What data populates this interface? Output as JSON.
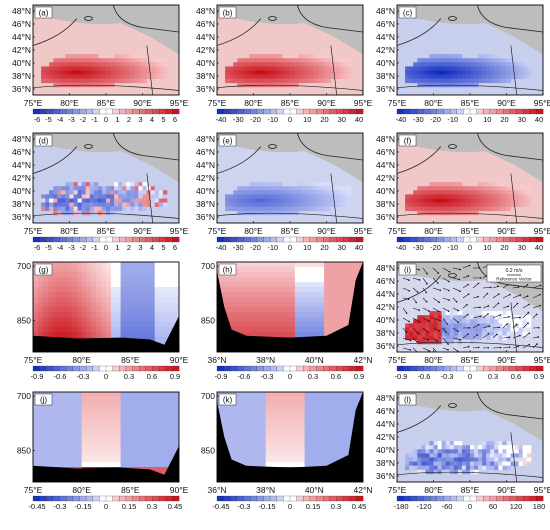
{
  "chart_data": [
    {
      "type": "heatmap",
      "panel": "(a)",
      "kind": "map",
      "xticks": [
        "75°E",
        "80°E",
        "85°E",
        "90°E",
        "95°E"
      ],
      "yticks": [
        "48°N",
        "46°N",
        "44°N",
        "42°N",
        "40°N",
        "38°N",
        "36°N"
      ],
      "field": "pos",
      "shared_colorbar": "cb_a"
    },
    {
      "type": "heatmap",
      "panel": "(b)",
      "kind": "map",
      "xticks": [
        "75°E",
        "80°E",
        "85°E",
        "90°E",
        "95°E"
      ],
      "yticks": [
        "48°N",
        "46°N",
        "44°N",
        "42°N",
        "40°N",
        "38°N",
        "36°N"
      ],
      "field": "pos",
      "shared_colorbar": "cb_b"
    },
    {
      "type": "heatmap",
      "panel": "(c)",
      "kind": "map",
      "xticks": [
        "75°E",
        "80°E",
        "85°E",
        "90°E",
        "95°E"
      ],
      "yticks": [
        "48°N",
        "46°N",
        "44°N",
        "42°N",
        "40°N",
        "38°N",
        "36°N"
      ],
      "field": "neg",
      "shared_colorbar": "cb_c"
    },
    {
      "type": "heatmap",
      "panel": "(d)",
      "kind": "map",
      "xticks": [
        "75°E",
        "80°E",
        "85°E",
        "90°E",
        "95°E"
      ],
      "yticks": [
        "48°N",
        "46°N",
        "44°N",
        "42°N",
        "40°N",
        "38°N",
        "36°N"
      ],
      "field": "mixneg",
      "shared_colorbar": "cb_d"
    },
    {
      "type": "heatmap",
      "panel": "(e)",
      "kind": "map",
      "xticks": [
        "75°E",
        "80°E",
        "85°E",
        "90°E",
        "95°E"
      ],
      "yticks": [
        "48°N",
        "46°N",
        "44°N",
        "42°N",
        "40°N",
        "38°N",
        "36°N"
      ],
      "field": "negweak",
      "shared_colorbar": "cb_e"
    },
    {
      "type": "heatmap",
      "panel": "(f)",
      "kind": "map",
      "xticks": [
        "75°E",
        "80°E",
        "85°E",
        "90°E",
        "95°E"
      ],
      "yticks": [
        "48°N",
        "46°N",
        "44°N",
        "42°N",
        "40°N",
        "38°N",
        "36°N"
      ],
      "field": "pos",
      "shared_colorbar": "cb_f"
    },
    {
      "type": "heatmap",
      "panel": "(g)",
      "kind": "section",
      "xticks": [
        "75°E",
        "80°E",
        "85°E",
        "90°E"
      ],
      "yticks": [
        "700",
        "850"
      ],
      "field": "sec_pos",
      "shared_colorbar": "cb_g"
    },
    {
      "type": "heatmap",
      "panel": "(h)",
      "kind": "section",
      "xticks": [
        "36°N",
        "38°N",
        "40°N",
        "42°N"
      ],
      "yticks": [
        "700",
        "850"
      ],
      "field": "sec_pos2",
      "shared_colorbar": "cb_h"
    },
    {
      "type": "heatmap",
      "panel": "(i)",
      "kind": "map",
      "xticks": [
        "75°E",
        "80°E",
        "85°E",
        "90°E",
        "95°E"
      ],
      "yticks": [
        "48°N",
        "46°N",
        "44°N",
        "42°N",
        "40°N",
        "38°N",
        "36°N"
      ],
      "field": "vec",
      "vector_key": {
        "label": "0.2 m/s",
        "title": "Reference Vector"
      },
      "shared_colorbar": "cb_i"
    },
    {
      "type": "heatmap",
      "panel": "(j)",
      "kind": "section",
      "xticks": [
        "75°E",
        "80°E",
        "85°E",
        "90°E"
      ],
      "yticks": [
        "700",
        "850"
      ],
      "field": "sec_neg",
      "shared_colorbar": "cb_j"
    },
    {
      "type": "heatmap",
      "panel": "(k)",
      "kind": "section",
      "xticks": [
        "36°N",
        "38°N",
        "40°N",
        "42°N"
      ],
      "yticks": [
        "700",
        "850"
      ],
      "field": "sec_neg",
      "shared_colorbar": "cb_k"
    },
    {
      "type": "heatmap",
      "panel": "(l)",
      "kind": "map",
      "xticks": [
        "75°E",
        "80°E",
        "85°E",
        "90°E",
        "95°E"
      ],
      "yticks": [
        "48°N",
        "46°N",
        "44°N",
        "42°N",
        "40°N",
        "38°N",
        "36°N"
      ],
      "field": "negnoisy",
      "shared_colorbar": "cb_l"
    }
  ],
  "colorbars": {
    "cb_a": {
      "labels": [
        "-6",
        "-5",
        "-4",
        "-3",
        "-2",
        "-1",
        "0",
        "1",
        "2",
        "3",
        "4",
        "5",
        "6"
      ]
    },
    "cb_b": {
      "labels": [
        "-40",
        "-30",
        "-20",
        "-10",
        "0",
        "10",
        "20",
        "30",
        "40"
      ]
    },
    "cb_c": {
      "labels": [
        "-40",
        "-30",
        "-20",
        "-10",
        "0",
        "10",
        "20",
        "30",
        "40"
      ]
    },
    "cb_d": {
      "labels": [
        "-6",
        "-5",
        "-4",
        "-3",
        "-2",
        "-1",
        "0",
        "1",
        "2",
        "3",
        "4",
        "5",
        "6"
      ]
    },
    "cb_e": {
      "labels": [
        "-40",
        "-30",
        "-20",
        "-10",
        "0",
        "10",
        "20",
        "30",
        "40"
      ]
    },
    "cb_f": {
      "labels": [
        "-40",
        "-30",
        "-20",
        "-10",
        "0",
        "10",
        "20",
        "30",
        "40"
      ]
    },
    "cb_g": {
      "labels": [
        "-0.9",
        "-0.6",
        "-0.3",
        "0",
        "0.3",
        "0.6",
        "0.9"
      ]
    },
    "cb_h": {
      "labels": [
        "-0.9",
        "-0.6",
        "-0.3",
        "0",
        "0.3",
        "0.6",
        "0.9"
      ]
    },
    "cb_i": {
      "labels": [
        "-0.9",
        "-0.6",
        "-0.3",
        "0",
        "0.3",
        "0.6",
        "0.9"
      ]
    },
    "cb_j": {
      "labels": [
        "-0.45",
        "-0.3",
        "-0.15",
        "0",
        "0.15",
        "0.3",
        "0.45"
      ]
    },
    "cb_k": {
      "labels": [
        "-0.45",
        "-0.3",
        "-0.15",
        "0",
        "0.15",
        "0.3",
        "0.45"
      ]
    },
    "cb_l": {
      "labels": [
        "-180",
        "-120",
        "-60",
        "0",
        "60",
        "120",
        "180"
      ]
    }
  },
  "colors": {
    "land": "#bdbdbd",
    "topo": "#000000",
    "red": "#d7191c",
    "blue": "#1d3fd0"
  }
}
